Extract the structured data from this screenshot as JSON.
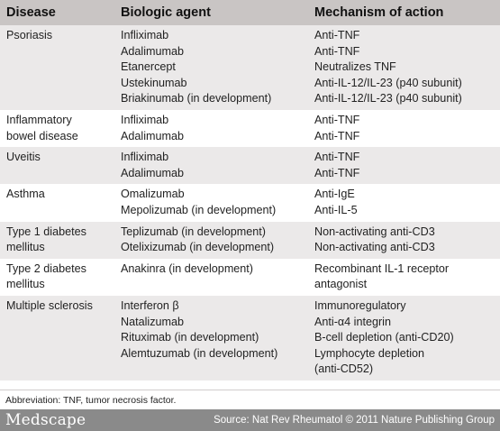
{
  "table": {
    "headers": [
      "Disease",
      "Biologic agent",
      "Mechanism of action"
    ],
    "rows": [
      {
        "disease": "Psoriasis",
        "agents": "Infliximab\nAdalimumab\nEtanercept\nUstekinumab\nBriakinumab (in development)",
        "mechanisms": "Anti-TNF\nAnti-TNF\nNeutralizes TNF\nAnti-IL-12/IL-23 (p40 subunit)\nAnti-IL-12/IL-23 (p40 subunit)"
      },
      {
        "disease": "Inflammatory\nbowel disease",
        "agents": "Infliximab\nAdalimumab",
        "mechanisms": "Anti-TNF\nAnti-TNF"
      },
      {
        "disease": "Uveitis",
        "agents": "Infliximab\nAdalimumab",
        "mechanisms": "Anti-TNF\nAnti-TNF"
      },
      {
        "disease": "Asthma",
        "agents": "Omalizumab\nMepolizumab (in development)",
        "mechanisms": "Anti-IgE\nAnti-IL-5"
      },
      {
        "disease": "Type 1 diabetes\nmellitus",
        "agents": "Teplizumab (in development)\nOtelixizumab (in development)",
        "mechanisms": "Non-activating anti-CD3\nNon-activating anti-CD3"
      },
      {
        "disease": "Type 2 diabetes\nmellitus",
        "agents": "Anakinra (in development)",
        "mechanisms": "Recombinant IL-1 receptor\nantagonist"
      },
      {
        "disease": "Multiple sclerosis",
        "agents": "Interferon β\nNatalizumab\nRituximab (in development)\nAlemtuzumab (in development)",
        "mechanisms": "Immunoregulatory\nAnti-α4 integrin\nB-cell depletion (anti-CD20)\nLymphocyte depletion\n(anti-CD52)"
      }
    ]
  },
  "note": "Abbreviation: TNF, tumor necrosis factor.",
  "footer": {
    "brand": "Medscape",
    "source": "Source: Nat Rev Rheumatol © 2011 Nature Publishing Group"
  }
}
